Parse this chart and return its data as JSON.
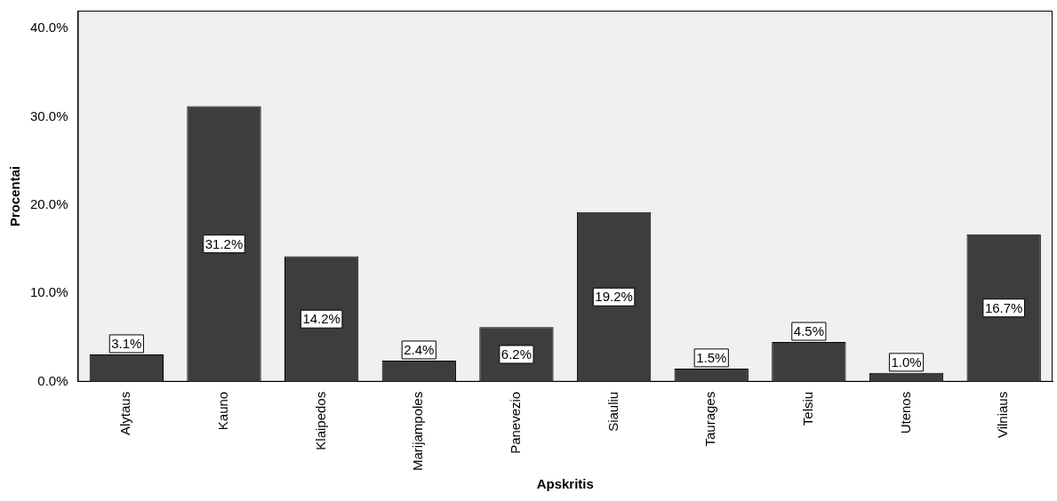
{
  "chart_data": {
    "type": "bar",
    "xlabel": "Apskritis",
    "ylabel": "Procentai",
    "categories": [
      "Alytaus",
      "Kauno",
      "Klaipedos",
      "Marijampoles",
      "Panevezio",
      "Siauliu",
      "Taurages",
      "Telsiu",
      "Utenos",
      "Vilniaus"
    ],
    "values": [
      3.1,
      31.2,
      14.2,
      2.4,
      6.2,
      19.2,
      1.5,
      4.5,
      1.0,
      16.7
    ],
    "value_labels": [
      "3.1%",
      "31.2%",
      "14.2%",
      "2.4%",
      "6.2%",
      "19.2%",
      "1.5%",
      "4.5%",
      "1.0%",
      "16.7%"
    ],
    "color": "#3d3d3d",
    "ylim": [
      0,
      42
    ],
    "yticks": [
      {
        "value": 0,
        "label": "0.0%"
      },
      {
        "value": 10,
        "label": "10.0%"
      },
      {
        "value": 20,
        "label": "20.0%"
      },
      {
        "value": 30,
        "label": "30.0%"
      },
      {
        "value": 40,
        "label": "40.0%"
      }
    ],
    "grid": false,
    "legend": false
  }
}
